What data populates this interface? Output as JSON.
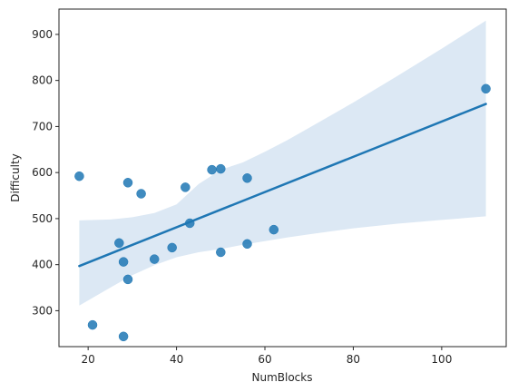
{
  "chart_data": {
    "type": "scatter",
    "title": "",
    "xlabel": "NumBlocks",
    "ylabel": "Difficulty",
    "xlim": [
      13.4,
      114.6
    ],
    "ylim": [
      222,
      955
    ],
    "xticks": [
      20,
      40,
      60,
      80,
      100
    ],
    "yticks": [
      300,
      400,
      500,
      600,
      700,
      800,
      900
    ],
    "grid": false,
    "legend": "none",
    "point_color": "#1f77b4",
    "series": [
      {
        "x": [
          18,
          21,
          27,
          28,
          28,
          29,
          29,
          32,
          35,
          39,
          42,
          43,
          48,
          50,
          50,
          56,
          56,
          62,
          110
        ],
        "y": [
          592,
          269,
          447,
          406,
          244,
          368,
          578,
          554,
          412,
          437,
          568,
          490,
          606,
          608,
          427,
          588,
          445,
          476,
          782
        ]
      }
    ],
    "regression": {
      "x": [
        18,
        110
      ],
      "y": [
        397,
        749
      ],
      "ci_x": [
        18,
        25,
        30,
        35,
        40,
        45,
        50,
        55,
        60,
        65,
        70,
        80,
        90,
        100,
        110
      ],
      "ci_upper": [
        496,
        498,
        503,
        512,
        531,
        575,
        606,
        622,
        645,
        670,
        697,
        752,
        810,
        869,
        930
      ],
      "ci_lower": [
        311,
        350,
        377,
        399,
        416,
        427,
        434,
        443,
        451,
        459,
        466,
        479,
        489,
        497,
        505
      ],
      "color": "#1f77b4",
      "band_color": "#dce8f4"
    }
  }
}
